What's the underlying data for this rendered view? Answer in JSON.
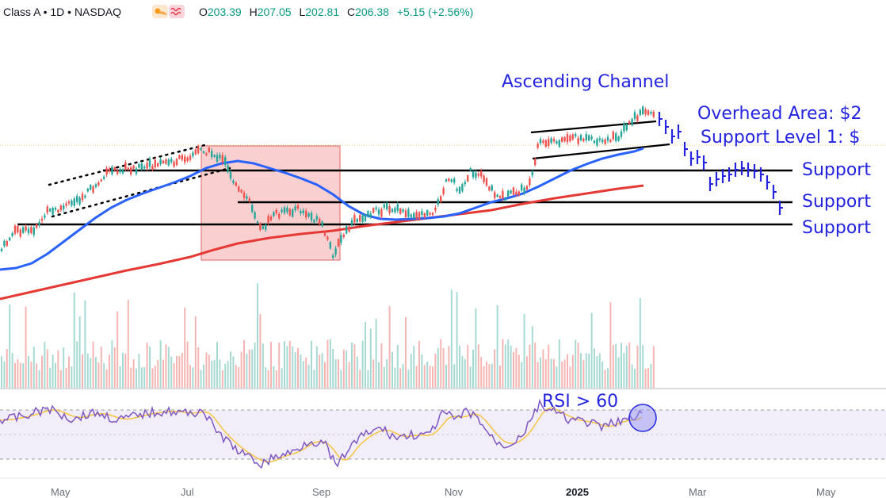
{
  "header": {
    "symbol_text": "Class A • 1D • NASDAQ",
    "weather_icon": "sun-cloud-icon",
    "wave_icon": "wave-icon",
    "open_label": "O",
    "open": "203.39",
    "high_label": "H",
    "high": "207.05",
    "low_label": "L",
    "low": "202.81",
    "close_label": "C",
    "close": "206.38",
    "change": "+5.15 (+2.56%)"
  },
  "colors": {
    "up": "#26a69a",
    "down": "#ef5350",
    "ma_short": "#2962ff",
    "ma_long": "#e53935",
    "annotation": "#2424e0",
    "rsi": "#7e57c2",
    "rsi_ma": "#f5c542",
    "highlight_box": "#f4a8a8"
  },
  "annotations": {
    "ascending_channel": "Ascending Channel",
    "overhead_area": "Overhead Area: $2",
    "support_level_1": "Support Level 1: $",
    "support_a": "Support",
    "support_b": "Support",
    "support_c": "Support",
    "rsi_note": "RSI > 60"
  },
  "chart_data": {
    "type": "candlestick",
    "x_ticks": [
      "May",
      "Jul",
      "Sep",
      "Nov",
      "2025",
      "Mar",
      "May"
    ],
    "bold_tick": "2025",
    "grid": false,
    "rsi_bands": [
      70,
      30
    ],
    "note": ""
  }
}
